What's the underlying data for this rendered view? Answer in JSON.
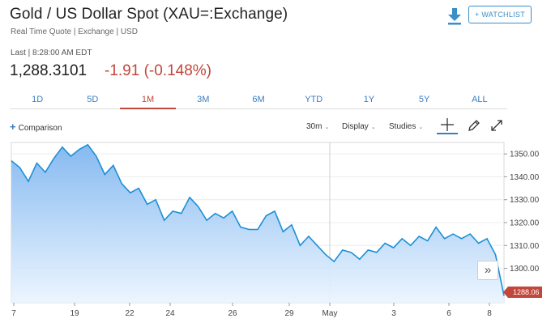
{
  "header": {
    "title": "Gold / US Dollar Spot (XAU=:Exchange)",
    "subtitle": "Real Time Quote | Exchange | USD",
    "watchlist_label": "+ WATCHLIST",
    "download_icon": "download-icon"
  },
  "quote": {
    "last_label": "Last | 8:28:00 AM EDT",
    "price": "1,288.3101",
    "change": "-1.91 (-0.148%)"
  },
  "range_tabs": [
    {
      "label": "1D"
    },
    {
      "label": "5D"
    },
    {
      "label": "1M",
      "active": true
    },
    {
      "label": "3M"
    },
    {
      "label": "6M"
    },
    {
      "label": "YTD"
    },
    {
      "label": "1Y"
    },
    {
      "label": "5Y"
    },
    {
      "label": "ALL"
    }
  ],
  "toolbar": {
    "comparison_label": "Comparison",
    "interval_label": "30m",
    "display_label": "Display",
    "studies_label": "Studies"
  },
  "chart": {
    "price_tag": "1288.06",
    "scroll_label": "»",
    "line_color": "#1c8fd6",
    "tag_color": "#c2463a"
  },
  "chart_data": {
    "type": "area",
    "y_ticks": [
      "1350.00",
      "1340.00",
      "1330.00",
      "1320.00",
      "1310.00",
      "1300.00"
    ],
    "ylim": [
      1285,
      1355
    ],
    "x_ticks": [
      "7",
      "19",
      "22",
      "24",
      "26",
      "29",
      "May",
      "3",
      "6",
      "8"
    ],
    "series": [
      {
        "values": [
          1347,
          1344,
          1338,
          1346,
          1342,
          1348,
          1353,
          1349,
          1352,
          1354,
          1349,
          1341,
          1345,
          1337,
          1333,
          1335,
          1328,
          1330,
          1321,
          1325,
          1324,
          1331,
          1327,
          1321,
          1324,
          1322,
          1325,
          1318,
          1317,
          1317,
          1323,
          1325,
          1316,
          1319,
          1310,
          1314,
          1310,
          1306,
          1303,
          1308,
          1307,
          1304,
          1308,
          1307,
          1311,
          1309,
          1313,
          1310,
          1314,
          1312,
          1318,
          1313,
          1315,
          1313,
          1315,
          1311,
          1313,
          1306,
          1288
        ]
      }
    ]
  }
}
